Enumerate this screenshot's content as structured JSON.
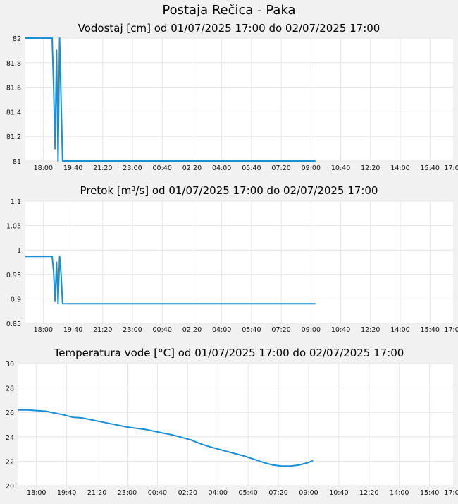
{
  "page": {
    "title": "Postaja Rečica - Paka"
  },
  "chart_data": [
    {
      "type": "line",
      "title": "Vodostaj [cm] od 01/07/2025 17:00 do 02/07/2025 17:00",
      "xlabel": "",
      "ylabel": "",
      "ylim": [
        81,
        82
      ],
      "xlim": [
        "17:00",
        "17:00"
      ],
      "grid": true,
      "x_ticks": [
        "18:00",
        "19:40",
        "21:20",
        "23:00",
        "00:40",
        "02:20",
        "04:00",
        "05:40",
        "07:20",
        "09:00",
        "10:40",
        "12:20",
        "14:00",
        "15:40",
        "17:00"
      ],
      "y_ticks": [
        "82",
        "81.8",
        "81.6",
        "81.4",
        "81.2",
        "81"
      ],
      "x": [
        "17:00",
        "18:30",
        "18:35",
        "18:40",
        "18:45",
        "18:50",
        "18:55",
        "19:00",
        "19:05",
        "19:10",
        "19:15",
        "19:20",
        "19:25",
        "19:30",
        "20:00",
        "21:00",
        "22:00",
        "23:00",
        "00:00",
        "01:00",
        "02:00",
        "03:00",
        "04:00",
        "05:00",
        "06:00",
        "07:00",
        "08:00",
        "09:00",
        "09:15"
      ],
      "series": [
        {
          "values": [
            82,
            82,
            81.6,
            81.1,
            81.9,
            81.0,
            82.0,
            81.5,
            81.0,
            81,
            81,
            81,
            81,
            81,
            81,
            81,
            81,
            81,
            81,
            81,
            81,
            81,
            81,
            81,
            81,
            81,
            81,
            81,
            81
          ]
        }
      ]
    },
    {
      "type": "line",
      "title": "Pretok [m³/s] od 01/07/2025 17:00 do 02/07/2025 17:00",
      "xlabel": "",
      "ylabel": "",
      "ylim": [
        0.85,
        1.1
      ],
      "xlim": [
        "17:00",
        "17:00"
      ],
      "grid": true,
      "x_ticks": [
        "18:00",
        "19:40",
        "21:20",
        "23:00",
        "00:40",
        "02:20",
        "04:00",
        "05:40",
        "07:20",
        "09:00",
        "10:40",
        "12:20",
        "14:00",
        "15:40",
        "17:00"
      ],
      "y_ticks": [
        "1.1",
        "1.05",
        "1",
        "0.95",
        "0.9",
        "0.85"
      ],
      "x": [
        "17:00",
        "18:30",
        "18:35",
        "18:40",
        "18:45",
        "18:50",
        "18:55",
        "19:00",
        "19:05",
        "19:10",
        "19:15",
        "19:20",
        "19:30",
        "20:00",
        "21:00",
        "22:00",
        "23:00",
        "00:00",
        "01:00",
        "02:00",
        "03:00",
        "04:00",
        "05:00",
        "06:00",
        "07:00",
        "08:00",
        "09:00",
        "09:15"
      ],
      "series": [
        {
          "values": [
            0.987,
            0.987,
            0.955,
            0.895,
            0.975,
            0.89,
            0.987,
            0.95,
            0.89,
            0.89,
            0.89,
            0.89,
            0.89,
            0.89,
            0.89,
            0.89,
            0.89,
            0.89,
            0.89,
            0.89,
            0.89,
            0.89,
            0.89,
            0.89,
            0.89,
            0.89,
            0.89,
            0.89
          ]
        }
      ]
    },
    {
      "type": "line",
      "title": "Temperatura vode [°C] od 01/07/2025 17:00 do 02/07/2025 17:00",
      "xlabel": "",
      "ylabel": "",
      "ylim": [
        20,
        30
      ],
      "xlim": [
        "17:00",
        "17:00"
      ],
      "grid": true,
      "x_ticks": [
        "18:00",
        "19:40",
        "21:20",
        "23:00",
        "00:40",
        "02:20",
        "04:00",
        "05:40",
        "07:20",
        "09:00",
        "10:40",
        "12:20",
        "14:00",
        "15:40",
        "17:00"
      ],
      "y_ticks": [
        "30",
        "28",
        "26",
        "24",
        "22",
        "20"
      ],
      "x": [
        "17:00",
        "17:30",
        "18:00",
        "18:30",
        "19:00",
        "19:30",
        "20:00",
        "20:30",
        "21:00",
        "21:30",
        "22:00",
        "22:30",
        "23:00",
        "23:30",
        "00:00",
        "00:30",
        "01:00",
        "01:30",
        "02:00",
        "02:30",
        "03:00",
        "03:30",
        "04:00",
        "04:30",
        "05:00",
        "05:30",
        "06:00",
        "06:30",
        "07:00",
        "07:30",
        "08:00",
        "08:30",
        "09:00",
        "09:15"
      ],
      "series": [
        {
          "values": [
            26.2,
            26.2,
            26.15,
            26.1,
            25.95,
            25.8,
            25.6,
            25.55,
            25.4,
            25.25,
            25.1,
            24.95,
            24.8,
            24.7,
            24.6,
            24.45,
            24.3,
            24.15,
            23.95,
            23.75,
            23.45,
            23.2,
            23.0,
            22.8,
            22.6,
            22.4,
            22.15,
            21.9,
            21.7,
            21.6,
            21.6,
            21.7,
            21.9,
            22.05
          ]
        }
      ]
    }
  ]
}
